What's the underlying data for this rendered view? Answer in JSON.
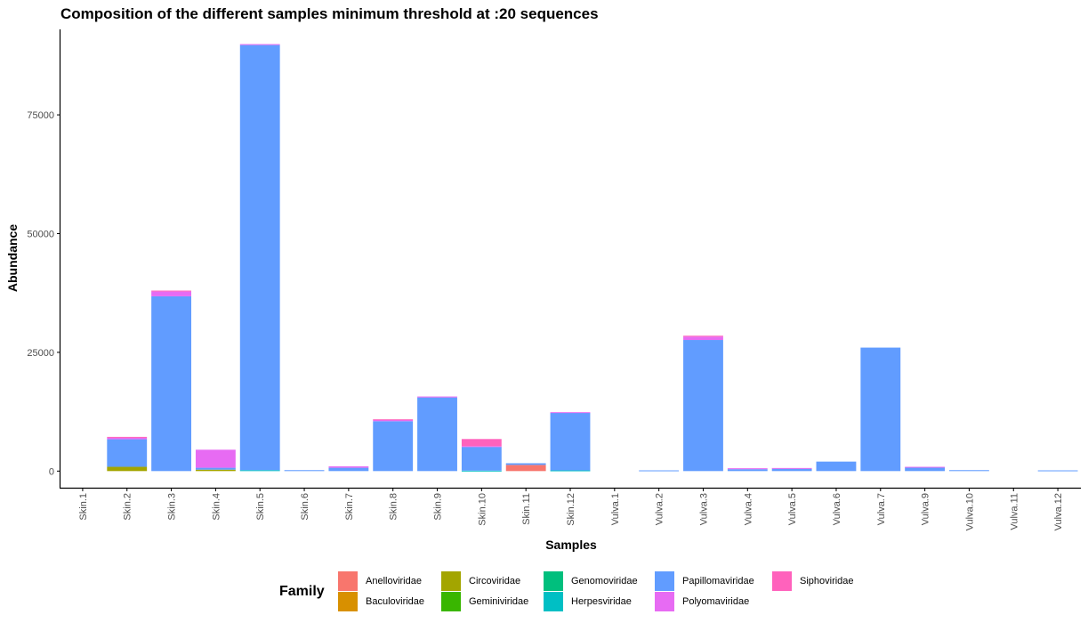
{
  "chart_data": {
    "type": "bar",
    "stacked": true,
    "title": "Composition of the different samples minimum threshold at :20 sequences",
    "xlabel": "Samples",
    "ylabel": "Abundance",
    "ylim": [
      -3500,
      93000
    ],
    "yticks": [
      0,
      25000,
      50000,
      75000
    ],
    "ytick_labels": [
      "0",
      "25000",
      "50000",
      "75000"
    ],
    "grid": false,
    "legend_position": "bottom",
    "legend_title": "Family",
    "categories": [
      "Skin.1",
      "Skin.2",
      "Skin.3",
      "Skin.4",
      "Skin.5",
      "Skin.6",
      "Skin.7",
      "Skin.8",
      "Skin.9",
      "Skin.10",
      "Skin.11",
      "Skin.12",
      "Vulva.1",
      "Vulva.2",
      "Vulva.3",
      "Vulva.4",
      "Vulva.5",
      "Vulva.6",
      "Vulva.7",
      "Vulva.9",
      "Vulva.10",
      "Vulva.11",
      "Vulva.12"
    ],
    "series": [
      {
        "name": "Anelloviridae",
        "color": "#F8766D",
        "values": [
          0,
          0,
          0,
          0,
          0,
          0,
          0,
          0,
          0,
          0,
          1300,
          0,
          0,
          0,
          0,
          0,
          0,
          0,
          0,
          0,
          0,
          0,
          0
        ]
      },
      {
        "name": "Baculoviridae",
        "color": "#D89000",
        "values": [
          0,
          0,
          0,
          0,
          0,
          0,
          0,
          0,
          0,
          0,
          0,
          0,
          0,
          0,
          0,
          0,
          0,
          0,
          0,
          0,
          0,
          0,
          0
        ]
      },
      {
        "name": "Circoviridae",
        "color": "#A3A500",
        "values": [
          0,
          900,
          0,
          300,
          0,
          0,
          0,
          0,
          0,
          0,
          0,
          0,
          0,
          0,
          0,
          0,
          0,
          0,
          0,
          0,
          0,
          0,
          0
        ]
      },
      {
        "name": "Geminiviridae",
        "color": "#39B600",
        "values": [
          0,
          0,
          0,
          0,
          0,
          0,
          0,
          0,
          0,
          0,
          0,
          0,
          0,
          0,
          0,
          0,
          0,
          0,
          0,
          0,
          0,
          0,
          0
        ]
      },
      {
        "name": "Genomoviridae",
        "color": "#00BF7D",
        "values": [
          0,
          0,
          0,
          0,
          0,
          0,
          0,
          0,
          0,
          0,
          0,
          0,
          0,
          0,
          0,
          0,
          0,
          0,
          0,
          0,
          0,
          0,
          0
        ]
      },
      {
        "name": "Herpesviridae",
        "color": "#00BFC4",
        "values": [
          0,
          0,
          0,
          0,
          200,
          0,
          0,
          0,
          0,
          100,
          0,
          150,
          0,
          0,
          0,
          0,
          0,
          0,
          0,
          0,
          0,
          0,
          0
        ]
      },
      {
        "name": "Papillomaviridae",
        "color": "#619CFF",
        "values": [
          0,
          5800,
          36800,
          400,
          89500,
          200,
          700,
          10500,
          15500,
          5000,
          350,
          12100,
          0,
          150,
          27600,
          400,
          500,
          2000,
          26000,
          800,
          200,
          0,
          150
        ]
      },
      {
        "name": "Polyomaviridae",
        "color": "#E76BF3",
        "values": [
          0,
          300,
          1000,
          3800,
          200,
          0,
          300,
          300,
          200,
          150,
          0,
          150,
          0,
          0,
          700,
          200,
          150,
          0,
          0,
          100,
          0,
          0,
          0
        ]
      },
      {
        "name": "Siphoviridae",
        "color": "#FF62BC",
        "values": [
          0,
          200,
          200,
          0,
          0,
          0,
          0,
          100,
          0,
          1500,
          0,
          0,
          0,
          0,
          200,
          0,
          0,
          0,
          0,
          0,
          0,
          0,
          0
        ]
      }
    ]
  }
}
